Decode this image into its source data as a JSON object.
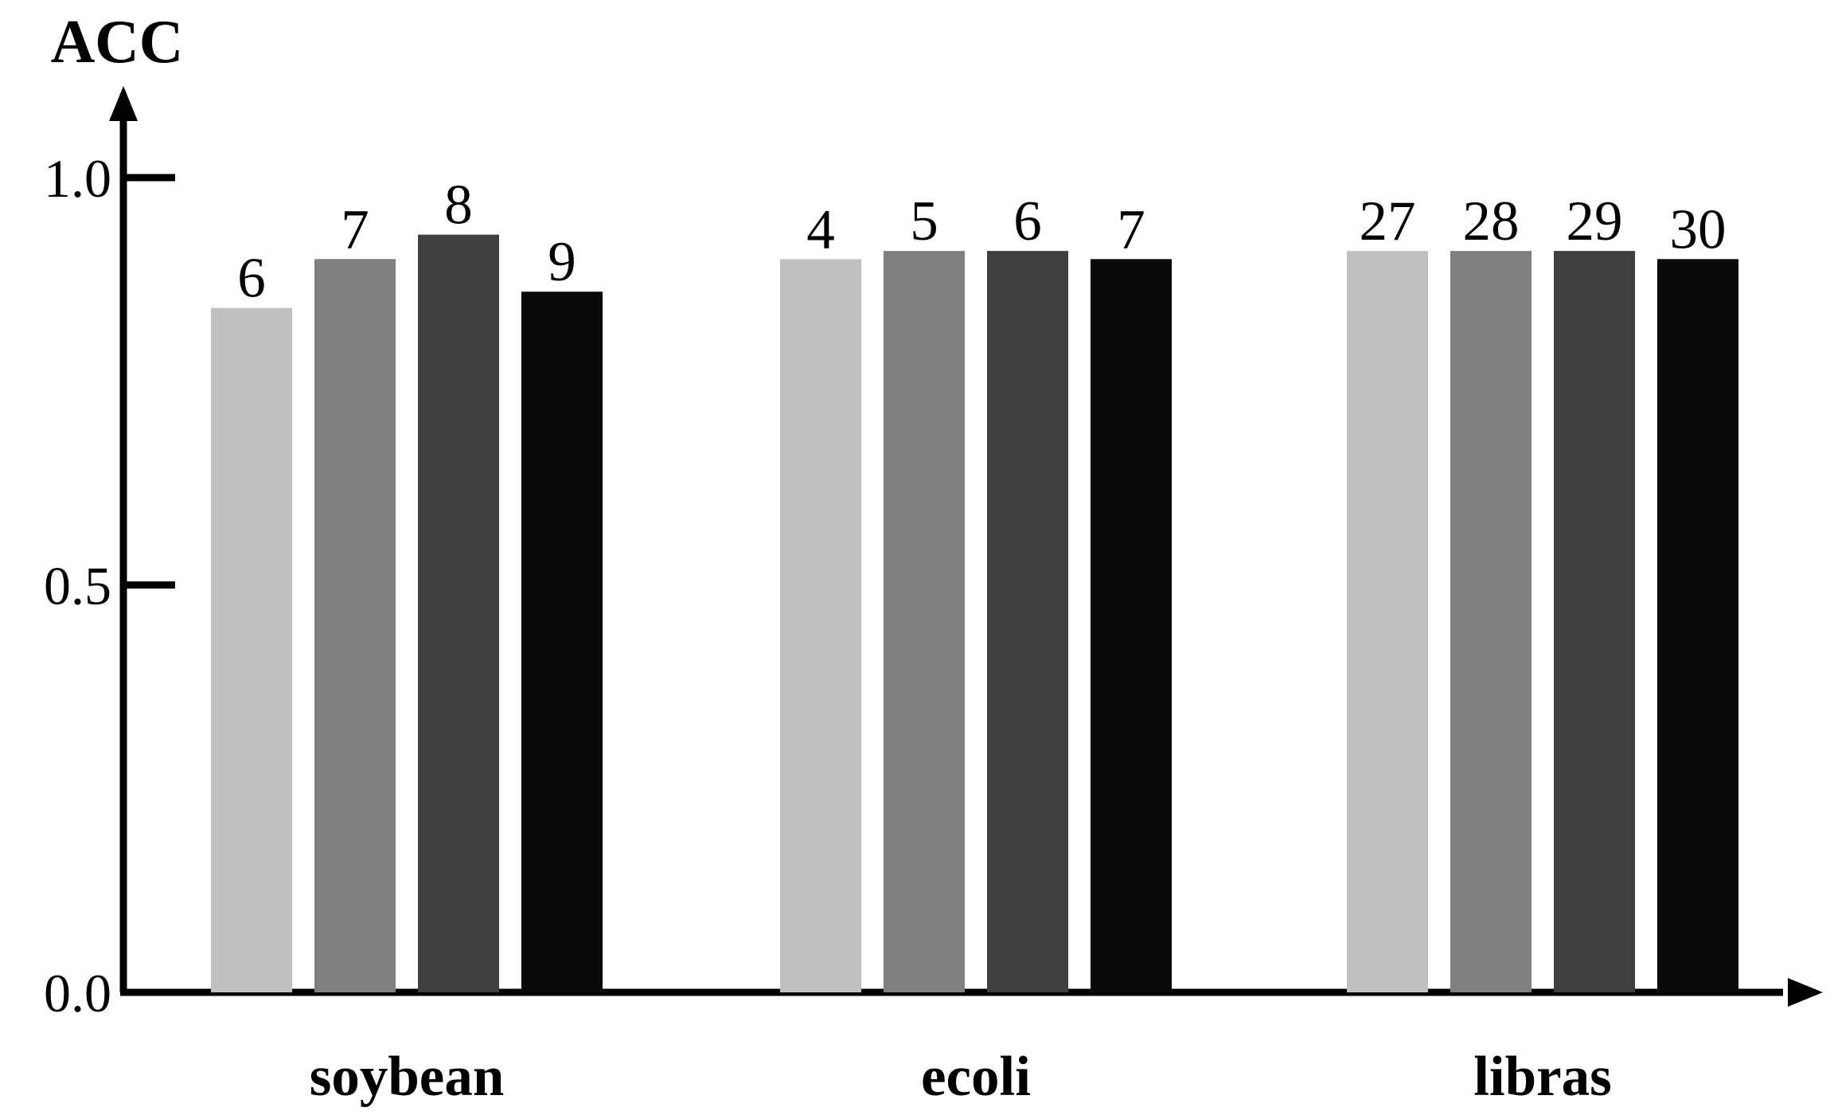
{
  "chart_data": {
    "type": "bar",
    "title": "",
    "xlabel": "",
    "ylabel": "ACC",
    "ylim": [
      0,
      1.0
    ],
    "yticks": [
      "0.0",
      "0.5",
      "1.0"
    ],
    "grid": false,
    "legend": "none",
    "categories": [
      "soybean",
      "ecoli",
      "libras"
    ],
    "series_colors": [
      "#c0c0c0",
      "#7f7f7f",
      "#404040",
      "#0a0a0a"
    ],
    "groups": [
      {
        "category": "soybean",
        "bars": [
          {
            "label": "6",
            "value": 0.84
          },
          {
            "label": "7",
            "value": 0.9
          },
          {
            "label": "8",
            "value": 0.93
          },
          {
            "label": "9",
            "value": 0.86
          }
        ]
      },
      {
        "category": "ecoli",
        "bars": [
          {
            "label": "4",
            "value": 0.9
          },
          {
            "label": "5",
            "value": 0.91
          },
          {
            "label": "6",
            "value": 0.91
          },
          {
            "label": "7",
            "value": 0.9
          }
        ]
      },
      {
        "category": "libras",
        "bars": [
          {
            "label": "27",
            "value": 0.91
          },
          {
            "label": "28",
            "value": 0.91
          },
          {
            "label": "29",
            "value": 0.91
          },
          {
            "label": "30",
            "value": 0.9
          }
        ]
      }
    ]
  }
}
